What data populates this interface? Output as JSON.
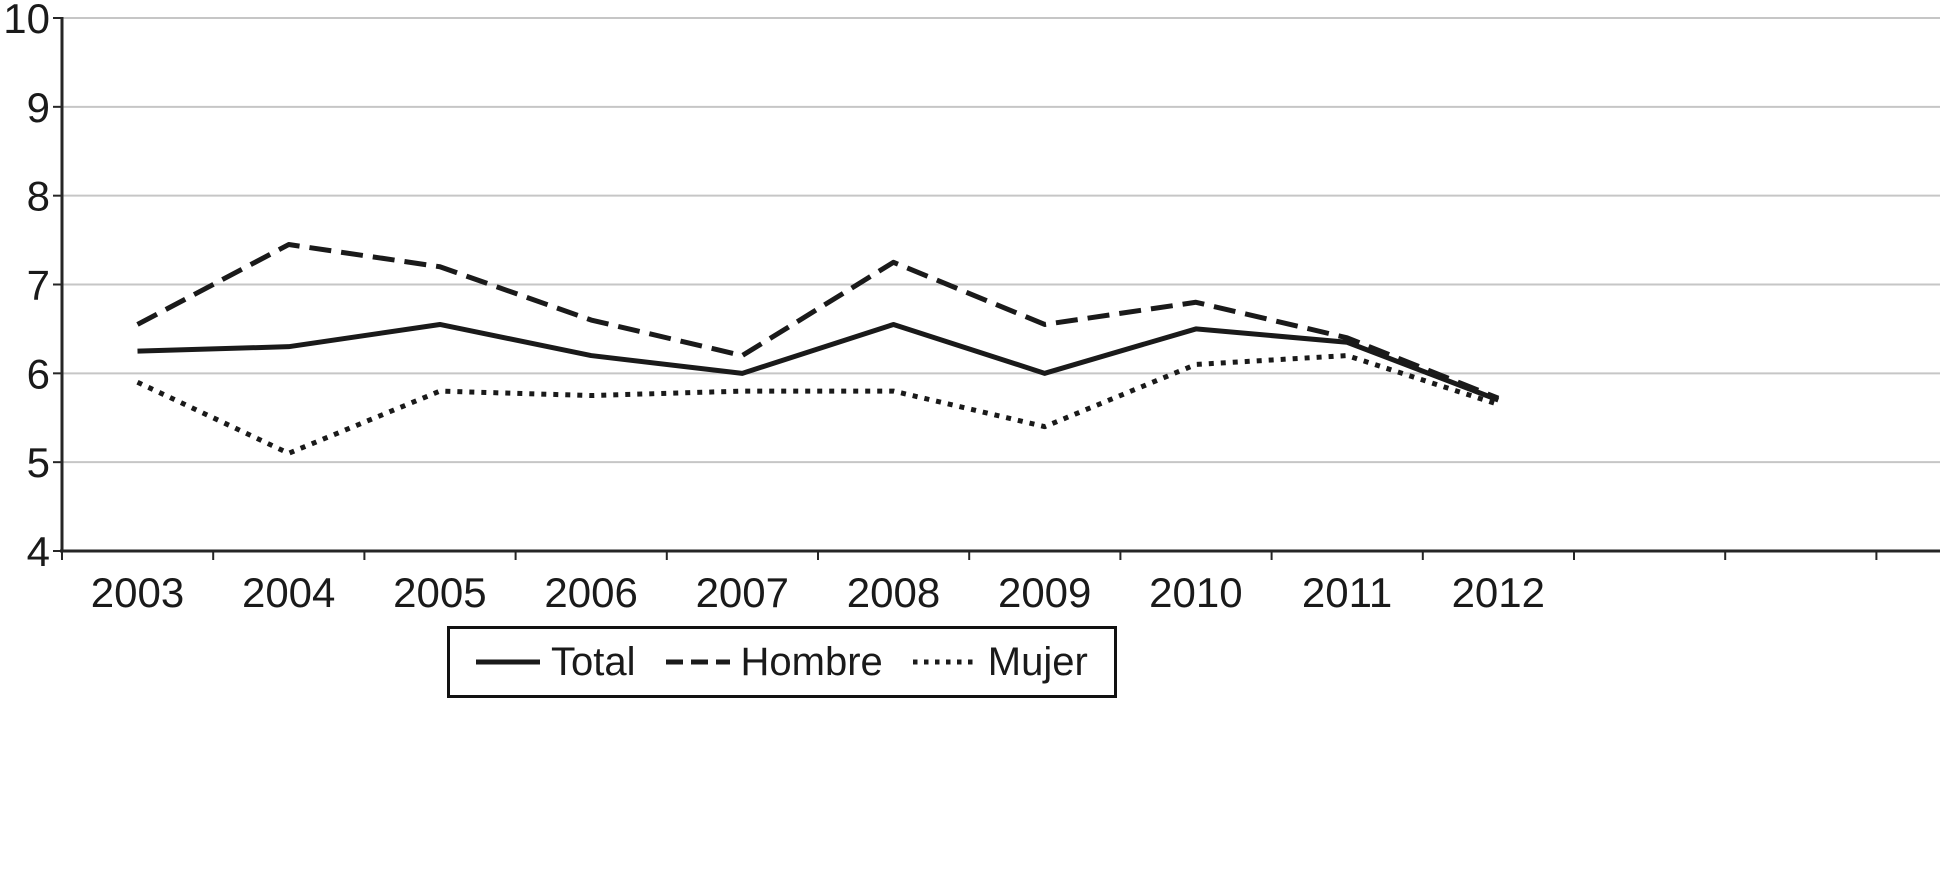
{
  "chart_data": {
    "type": "line",
    "categories": [
      "2003",
      "2004",
      "2005",
      "2006",
      "2007",
      "2008",
      "2009",
      "2010",
      "2011",
      "2012"
    ],
    "series": [
      {
        "name": "Total",
        "style": "solid",
        "values": [
          6.25,
          6.3,
          6.55,
          6.2,
          6.0,
          6.55,
          6.0,
          6.5,
          6.35,
          5.7
        ]
      },
      {
        "name": "Hombre",
        "style": "dashed",
        "values": [
          6.55,
          7.45,
          7.2,
          6.6,
          6.2,
          7.25,
          6.55,
          6.8,
          6.4,
          5.72
        ]
      },
      {
        "name": "Mujer",
        "style": "dotted",
        "values": [
          5.9,
          5.1,
          5.8,
          5.75,
          5.8,
          5.8,
          5.4,
          6.1,
          6.2,
          5.65
        ]
      }
    ],
    "ylim": [
      4,
      10
    ],
    "yticks": [
      4,
      5,
      6,
      7,
      8,
      9,
      10
    ],
    "grid": true,
    "legend_position": "bottom",
    "colors": {
      "line": "#1a1a1a",
      "grid": "#c6c6c6",
      "axis": "#262626",
      "text": "#1a1a1a"
    }
  }
}
